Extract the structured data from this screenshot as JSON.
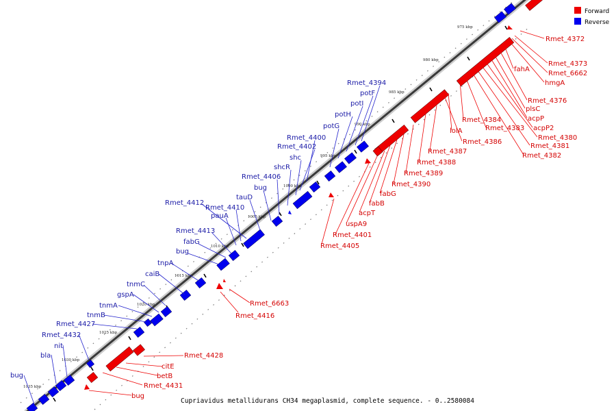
{
  "caption": "Cupriavidus metallidurans CH34 megaplasmid, complete sequence. - 0..2580084",
  "legend": [
    {
      "label": "Forward",
      "color": "#ee0000"
    },
    {
      "label": "Reverse",
      "color": "#0000ee"
    }
  ],
  "colors": {
    "forward": "#ee0000",
    "reverse": "#0000ee",
    "backbone": "#555555"
  },
  "ticks": [
    "975 kbp",
    "980 kbp",
    "985 kbp",
    "990 kbp",
    "995 kbp",
    "1000 kbp",
    "1005 kbp",
    "1010 kbp",
    "1015 kbp",
    "1020 kbp",
    "1025 kbp",
    "1030 kbp",
    "1035 kbp"
  ],
  "forward_labels": [
    "Rmet_4372",
    "Rmet_4373",
    "Rmet_6662",
    "fahA",
    "hmgA",
    "Rmet_4376",
    "plsC",
    "acpP",
    "acpP2",
    "Rmet_4380",
    "Rmet_4381",
    "Rmet_4382",
    "Rmet_4383",
    "Rmet_4384",
    "lolA",
    "Rmet_4386",
    "Rmet_4387",
    "Rmet_4388",
    "Rmet_4389",
    "Rmet_4390",
    "fabG",
    "fabB",
    "acpT",
    "uspA9",
    "Rmet_4401",
    "Rmet_4405",
    "Rmet_6663",
    "Rmet_4416",
    "Rmet_4428",
    "citE",
    "betB",
    "Rmet_4431",
    "bug"
  ],
  "reverse_labels": [
    "Rmet_4394",
    "potF",
    "potI",
    "potH",
    "potG",
    "Rmet_4400",
    "Rmet_4402",
    "shc",
    "shcR",
    "Rmet_4406",
    "bug",
    "tauD",
    "Rmet_4412",
    "Rmet_4410",
    "pauA",
    "Rmet_4413",
    "fabG",
    "bug",
    "tnpA",
    "caiB",
    "tnmC",
    "gspA",
    "tnmA",
    "tnmB",
    "Rmet_4427",
    "Rmet_4432",
    "nit",
    "bla",
    "bug"
  ]
}
